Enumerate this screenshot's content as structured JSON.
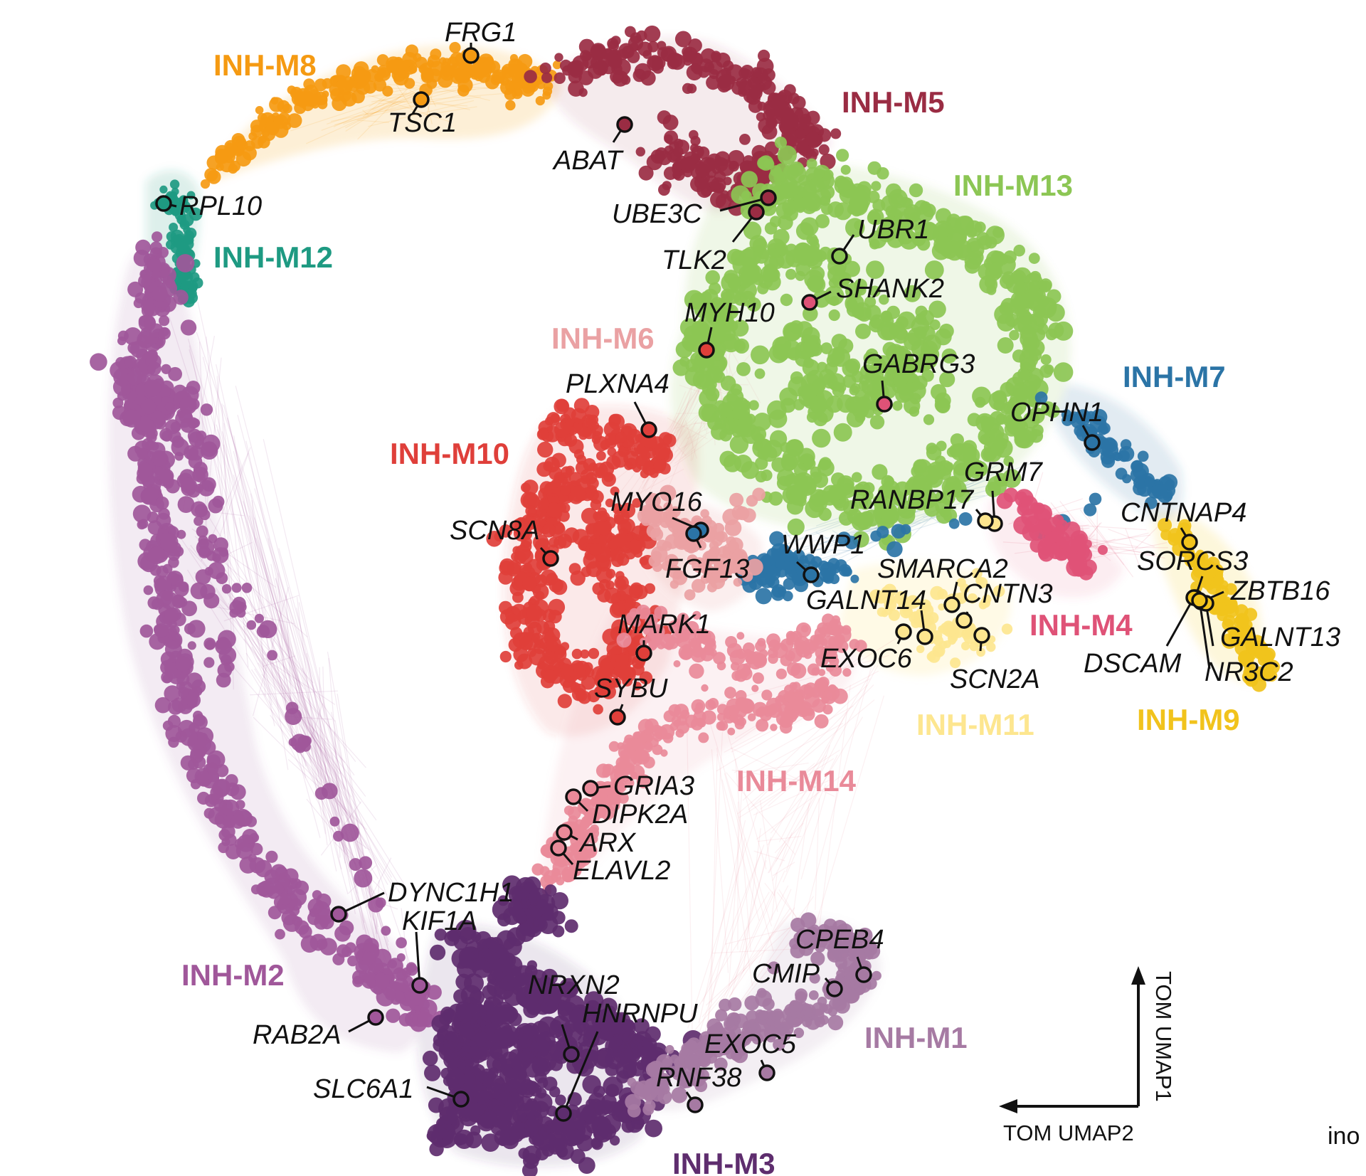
{
  "modules": [
    {
      "id": "INH-M1",
      "label": "INH-M1",
      "color": "#a67aa3"
    },
    {
      "id": "INH-M2",
      "label": "INH-M2",
      "color": "#a0579a"
    },
    {
      "id": "INH-M3",
      "label": "INH-M3",
      "color": "#5e2d6e"
    },
    {
      "id": "INH-M4",
      "label": "INH-M4",
      "color": "#df5277"
    },
    {
      "id": "INH-M5",
      "label": "INH-M5",
      "color": "#9a2c43"
    },
    {
      "id": "INH-M6",
      "label": "INH-M6",
      "color": "#eaa1a3"
    },
    {
      "id": "INH-M7",
      "label": "INH-M7",
      "color": "#2b74a6"
    },
    {
      "id": "INH-M8",
      "label": "INH-M8",
      "color": "#f59a12"
    },
    {
      "id": "INH-M9",
      "label": "INH-M9",
      "color": "#f1c31c"
    },
    {
      "id": "INH-M10",
      "label": "INH-M10",
      "color": "#df3f3a"
    },
    {
      "id": "INH-M11",
      "label": "INH-M11",
      "color": "#fde68f"
    },
    {
      "id": "INH-M12",
      "label": "INH-M12",
      "color": "#1e9a82"
    },
    {
      "id": "INH-M13",
      "label": "INH-M13",
      "color": "#8cc654"
    },
    {
      "id": "INH-M14",
      "label": "INH-M14",
      "color": "#e98a99"
    }
  ],
  "genes": [
    "FRG1",
    "TSC1",
    "ABAT",
    "RPL10",
    "UBE3C",
    "TLK2",
    "UBR1",
    "SHANK2",
    "MYH10",
    "PLXNA4",
    "GABRG3",
    "OPHN1",
    "GRM7",
    "RANBP17",
    "CNTNAP4",
    "SORCS3",
    "ZBTB16",
    "GALNT13",
    "DSCAM",
    "NR3C2",
    "SMARCA2",
    "CNTN3",
    "GALNT14",
    "EXOC6",
    "SCN2A",
    "MYO16",
    "FGF13",
    "WWP1",
    "SCN8A",
    "MARK1",
    "SYBU",
    "GRIA3",
    "DIPK2A",
    "ARX",
    "ELAVL2",
    "DYNC1H1",
    "KIF1A",
    "RAB2A",
    "SLC6A1",
    "NRXN2",
    "HNRNPU",
    "CPEB4",
    "CMIP",
    "EXOC5",
    "RNF38"
  ],
  "axes": {
    "y_label": "TOM UMAP1",
    "x_label": "TOM UMAP2"
  },
  "corner_text": "ino"
}
